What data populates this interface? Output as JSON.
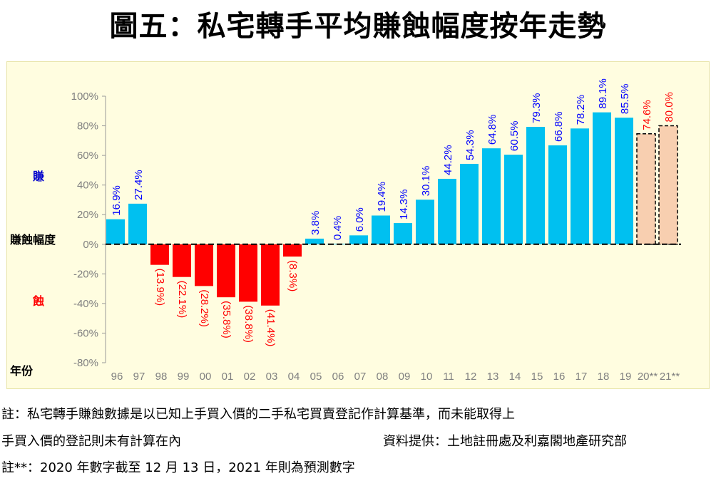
{
  "title": "圖五：私宅轉手平均賺蝕幅度按年走勢",
  "side_labels": {
    "gain": "賺",
    "ylabel": "賺蝕幅度",
    "loss": "蝕",
    "xlabel": "年份"
  },
  "notes": {
    "line1": "註：私宅轉手賺蝕數據是以已知上手買入價的二手私宅買賣登記作計算基準，而未能取得上",
    "line2": "手買入價的登記則未有計算在內",
    "source": "資料提供：土地註冊處及利嘉閣地產研究部",
    "line3": "註**：2020 年數字截至 12 月 13 日，2021 年則為預測數字"
  },
  "colors": {
    "positive": "#00c0f0",
    "negative": "#ff0000",
    "forecast": "#f8cfb0",
    "positive_label": "#0000ff",
    "negative_label": "#ff0000",
    "gain_text": "#0000cc",
    "loss_text": "#ff0000"
  },
  "chart_data": {
    "type": "bar",
    "title": "圖五：私宅轉手平均賺蝕幅度按年走勢",
    "xlabel": "年份",
    "ylabel": "賺蝕幅度",
    "ylim": [
      -80,
      100
    ],
    "yticks": [
      "100%",
      "80%",
      "60%",
      "40%",
      "20%",
      "0%",
      "-20%",
      "-40%",
      "-60%",
      "-80%"
    ],
    "ytick_values": [
      100,
      80,
      60,
      40,
      20,
      0,
      -20,
      -40,
      -60,
      -80
    ],
    "categories": [
      "96",
      "97",
      "98",
      "99",
      "00",
      "01",
      "02",
      "03",
      "04",
      "05",
      "06",
      "07",
      "08",
      "09",
      "10",
      "11",
      "12",
      "13",
      "14",
      "15",
      "16",
      "17",
      "18",
      "19",
      "20**",
      "21**"
    ],
    "values": [
      16.9,
      27.4,
      -13.9,
      -22.1,
      -28.2,
      -35.8,
      -38.8,
      -41.4,
      -8.3,
      3.8,
      0.4,
      6.0,
      19.4,
      14.3,
      30.1,
      44.2,
      54.3,
      64.8,
      60.5,
      79.3,
      66.8,
      78.2,
      89.1,
      85.5,
      74.6,
      80.0
    ],
    "labels": [
      "16.9%",
      "27.4%",
      "(13.9%)",
      "(22.1%)",
      "(28.2%)",
      "(35.8%)",
      "(38.8%)",
      "(41.4%)",
      "(8.3%)",
      "3.8%",
      "0.4%",
      "6.0%",
      "19.4%",
      "14.3%",
      "30.1%",
      "44.2%",
      "54.3%",
      "64.8%",
      "60.5%",
      "79.3%",
      "66.8%",
      "78.2%",
      "89.1%",
      "85.5%",
      "74.6%",
      "80.0%"
    ],
    "forecast": [
      false,
      false,
      false,
      false,
      false,
      false,
      false,
      false,
      false,
      false,
      false,
      false,
      false,
      false,
      false,
      false,
      false,
      false,
      false,
      false,
      false,
      false,
      false,
      false,
      true,
      true
    ]
  }
}
